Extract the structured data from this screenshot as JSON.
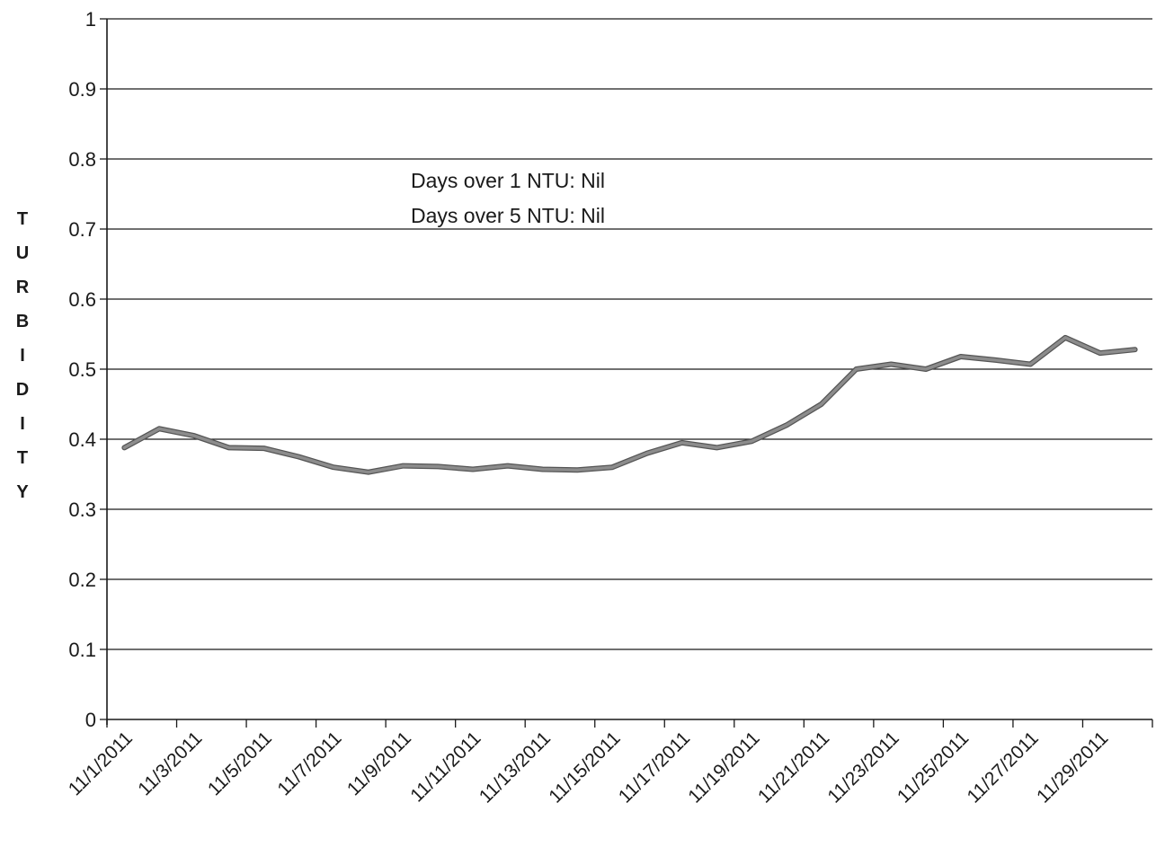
{
  "chart_data": {
    "type": "line",
    "title": "",
    "xlabel": "",
    "ylabel": "TURBIDITY",
    "ylim": [
      0,
      1
    ],
    "y_ticks": [
      "0",
      "0.1",
      "0.2",
      "0.3",
      "0.4",
      "0.5",
      "0.6",
      "0.7",
      "0.8",
      "0.9",
      "1"
    ],
    "x_tick_labels": [
      "11/1/2011",
      "11/3/2011",
      "11/5/2011",
      "11/7/2011",
      "11/9/2011",
      "11/11/2011",
      "11/13/2011",
      "11/15/2011",
      "11/17/2011",
      "11/19/2011",
      "11/21/2011",
      "11/23/2011",
      "11/25/2011",
      "11/27/2011",
      "11/29/2011"
    ],
    "grid": true,
    "legend": "none",
    "annotations": [
      "Days over 1 NTU: Nil",
      "Days over 5 NTU: Nil"
    ],
    "series": [
      {
        "color": "#8c8c8c",
        "x": [
          "11/1/2011",
          "11/2/2011",
          "11/3/2011",
          "11/4/2011",
          "11/5/2011",
          "11/6/2011",
          "11/7/2011",
          "11/8/2011",
          "11/9/2011",
          "11/10/2011",
          "11/11/2011",
          "11/12/2011",
          "11/13/2011",
          "11/14/2011",
          "11/15/2011",
          "11/16/2011",
          "11/17/2011",
          "11/18/2011",
          "11/19/2011",
          "11/20/2011",
          "11/21/2011",
          "11/22/2011",
          "11/23/2011",
          "11/24/2011",
          "11/25/2011",
          "11/26/2011",
          "11/27/2011",
          "11/28/2011",
          "11/29/2011",
          "11/30/2011"
        ],
        "values": [
          0.388,
          0.415,
          0.405,
          0.388,
          0.387,
          0.375,
          0.36,
          0.353,
          0.362,
          0.361,
          0.357,
          0.362,
          0.357,
          0.356,
          0.36,
          0.38,
          0.395,
          0.388,
          0.397,
          0.42,
          0.45,
          0.5,
          0.507,
          0.5,
          0.518,
          0.513,
          0.507,
          0.545,
          0.523,
          0.528
        ]
      }
    ]
  }
}
